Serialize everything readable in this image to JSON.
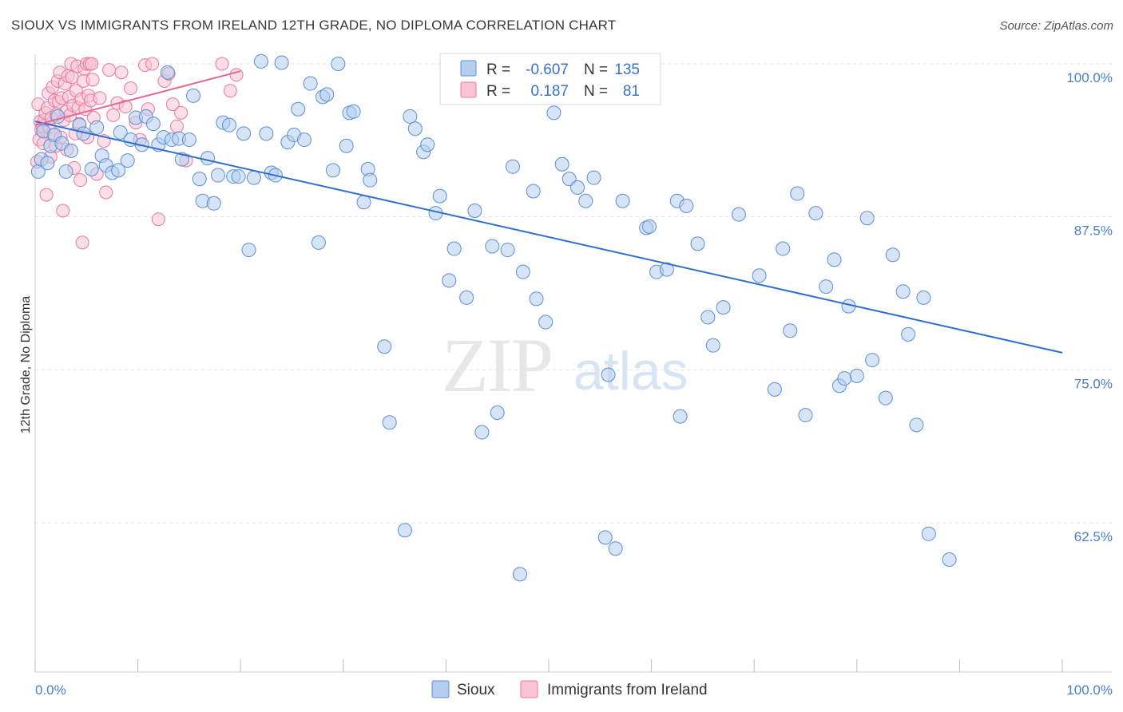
{
  "header": {
    "title": "SIOUX VS IMMIGRANTS FROM IRELAND 12TH GRADE, NO DIPLOMA CORRELATION CHART",
    "source": "Source: ZipAtlas.com"
  },
  "watermark": {
    "zip": "ZIP",
    "atlas": "atlas"
  },
  "colors": {
    "sioux_fill": "#b5cdee",
    "sioux_stroke": "#5b8fd6",
    "sioux_line": "#2e6fcd",
    "ireland_fill": "#f8c3d4",
    "ireland_stroke": "#e8799d",
    "ireland_line": "#e46891",
    "accent_text": "#3a74c9"
  },
  "legend": {
    "r_label": "R =",
    "n_label": "N =",
    "rows": [
      {
        "r": "-0.607",
        "n": "135"
      },
      {
        "r": "0.187",
        "n": "81"
      }
    ]
  },
  "chart_data": {
    "type": "scatter",
    "title": "SIOUX VS IMMIGRANTS FROM IRELAND 12TH GRADE, NO DIPLOMA CORRELATION CHART",
    "xlabel": "",
    "ylabel": "12th Grade, No Diploma",
    "xlim": [
      0,
      100
    ],
    "ylim": [
      50,
      102
    ],
    "x_tick_labels": [
      "0.0%",
      "100.0%"
    ],
    "y_tick_labels": [
      "100.0%",
      "87.5%",
      "75.0%",
      "62.5%"
    ],
    "y_ticks": [
      100,
      87.5,
      75,
      62.5
    ],
    "grid": true,
    "legend_position": "bottom",
    "series": [
      {
        "name": "Sioux",
        "r": -0.607,
        "n": 135,
        "trend": [
          [
            0,
            95.3
          ],
          [
            100,
            76.4
          ]
        ],
        "points": [
          [
            0.3,
            91.2
          ],
          [
            0.6,
            92.2
          ],
          [
            0.8,
            94.5
          ],
          [
            1.2,
            91.9
          ],
          [
            1.5,
            93.3
          ],
          [
            1.9,
            94.2
          ],
          [
            2.2,
            95.7
          ],
          [
            2.6,
            93.5
          ],
          [
            3.0,
            91.2
          ],
          [
            3.5,
            92.9
          ],
          [
            4.3,
            95.0
          ],
          [
            4.7,
            94.3
          ],
          [
            5.5,
            91.4
          ],
          [
            6.0,
            94.8
          ],
          [
            6.5,
            92.5
          ],
          [
            6.9,
            91.7
          ],
          [
            7.5,
            91.1
          ],
          [
            8.1,
            91.3
          ],
          [
            8.3,
            94.4
          ],
          [
            9.0,
            92.1
          ],
          [
            9.3,
            93.8
          ],
          [
            9.8,
            95.6
          ],
          [
            10.4,
            93.4
          ],
          [
            10.8,
            95.7
          ],
          [
            11.5,
            95.1
          ],
          [
            12.0,
            93.4
          ],
          [
            12.5,
            94.0
          ],
          [
            12.9,
            99.3
          ],
          [
            13.3,
            93.8
          ],
          [
            14.0,
            93.9
          ],
          [
            14.3,
            92.2
          ],
          [
            15.0,
            93.8
          ],
          [
            15.4,
            97.4
          ],
          [
            16.0,
            90.6
          ],
          [
            16.3,
            88.8
          ],
          [
            16.8,
            92.3
          ],
          [
            17.4,
            88.6
          ],
          [
            17.8,
            90.9
          ],
          [
            18.3,
            95.2
          ],
          [
            18.9,
            95.0
          ],
          [
            19.3,
            90.8
          ],
          [
            19.8,
            90.8
          ],
          [
            20.3,
            94.3
          ],
          [
            20.8,
            84.8
          ],
          [
            21.3,
            90.7
          ],
          [
            22.0,
            100.2
          ],
          [
            22.5,
            94.3
          ],
          [
            23.0,
            91.1
          ],
          [
            23.4,
            90.9
          ],
          [
            24.0,
            100.1
          ],
          [
            24.6,
            93.6
          ],
          [
            25.2,
            94.2
          ],
          [
            25.6,
            96.3
          ],
          [
            26.2,
            93.8
          ],
          [
            26.8,
            98.4
          ],
          [
            27.6,
            85.4
          ],
          [
            28.0,
            97.3
          ],
          [
            28.4,
            97.5
          ],
          [
            29.0,
            91.3
          ],
          [
            29.5,
            100.0
          ],
          [
            30.3,
            93.3
          ],
          [
            30.6,
            96.0
          ],
          [
            31.0,
            96.1
          ],
          [
            32.0,
            88.7
          ],
          [
            32.4,
            91.4
          ],
          [
            32.6,
            90.5
          ],
          [
            34.0,
            76.9
          ],
          [
            34.5,
            70.7
          ],
          [
            36.0,
            61.9
          ],
          [
            36.5,
            95.7
          ],
          [
            37.0,
            94.7
          ],
          [
            37.8,
            92.8
          ],
          [
            38.2,
            93.4
          ],
          [
            39.0,
            87.8
          ],
          [
            39.4,
            89.2
          ],
          [
            40.3,
            82.3
          ],
          [
            40.8,
            84.9
          ],
          [
            41.0,
            100.1
          ],
          [
            42.0,
            80.9
          ],
          [
            42.8,
            88.0
          ],
          [
            43.5,
            69.9
          ],
          [
            44.5,
            85.1
          ],
          [
            45.0,
            71.5
          ],
          [
            46.0,
            84.8
          ],
          [
            46.5,
            91.6
          ],
          [
            47.2,
            58.3
          ],
          [
            47.5,
            83.0
          ],
          [
            48.5,
            89.6
          ],
          [
            48.8,
            80.8
          ],
          [
            49.7,
            78.9
          ],
          [
            50.5,
            96.0
          ],
          [
            51.3,
            91.8
          ],
          [
            52.0,
            90.6
          ],
          [
            52.8,
            89.9
          ],
          [
            53.6,
            88.8
          ],
          [
            54.4,
            90.7
          ],
          [
            55.5,
            61.3
          ],
          [
            55.8,
            74.6
          ],
          [
            56.5,
            60.4
          ],
          [
            57.2,
            88.8
          ],
          [
            57.5,
            100.0
          ],
          [
            59.5,
            86.6
          ],
          [
            59.8,
            86.7
          ],
          [
            60.5,
            83.0
          ],
          [
            61.5,
            83.2
          ],
          [
            62.5,
            88.8
          ],
          [
            62.8,
            71.2
          ],
          [
            63.4,
            88.4
          ],
          [
            64.5,
            85.3
          ],
          [
            65.5,
            79.3
          ],
          [
            66.0,
            77.0
          ],
          [
            67.0,
            80.1
          ],
          [
            68.5,
            87.7
          ],
          [
            70.5,
            82.7
          ],
          [
            72.0,
            73.4
          ],
          [
            72.8,
            84.9
          ],
          [
            73.5,
            78.2
          ],
          [
            74.2,
            89.4
          ],
          [
            75.0,
            71.3
          ],
          [
            76.0,
            87.8
          ],
          [
            77.0,
            81.8
          ],
          [
            77.8,
            84.0
          ],
          [
            78.3,
            73.7
          ],
          [
            78.8,
            74.3
          ],
          [
            79.2,
            80.2
          ],
          [
            80.0,
            74.5
          ],
          [
            81.0,
            87.4
          ],
          [
            81.5,
            75.8
          ],
          [
            82.8,
            72.7
          ],
          [
            83.5,
            84.4
          ],
          [
            84.5,
            81.4
          ],
          [
            85.0,
            77.9
          ],
          [
            85.8,
            70.5
          ],
          [
            86.5,
            80.9
          ],
          [
            87.0,
            61.6
          ],
          [
            89.0,
            59.5
          ]
        ]
      },
      {
        "name": "Immigrants from Ireland",
        "r": 0.187,
        "n": 81,
        "trend": [
          [
            0,
            95.0
          ],
          [
            20,
            99.4
          ]
        ],
        "points": [
          [
            0.2,
            92.0
          ],
          [
            0.3,
            96.7
          ],
          [
            0.4,
            93.8
          ],
          [
            0.5,
            95.3
          ],
          [
            0.6,
            94.6
          ],
          [
            0.7,
            94.9
          ],
          [
            0.8,
            93.5
          ],
          [
            0.9,
            95.4
          ],
          [
            1.0,
            96.0
          ],
          [
            1.1,
            89.3
          ],
          [
            1.2,
            96.4
          ],
          [
            1.3,
            97.6
          ],
          [
            1.4,
            94.8
          ],
          [
            1.5,
            92.4
          ],
          [
            1.6,
            95.6
          ],
          [
            1.7,
            98.1
          ],
          [
            1.8,
            94.2
          ],
          [
            1.9,
            97.0
          ],
          [
            2.0,
            93.3
          ],
          [
            2.1,
            95.9
          ],
          [
            2.2,
            98.6
          ],
          [
            2.3,
            96.9
          ],
          [
            2.4,
            99.3
          ],
          [
            2.5,
            94.0
          ],
          [
            2.6,
            97.2
          ],
          [
            2.7,
            88.0
          ],
          [
            2.8,
            95.4
          ],
          [
            2.9,
            98.4
          ],
          [
            3.0,
            96.1
          ],
          [
            3.1,
            93.0
          ],
          [
            3.2,
            99.0
          ],
          [
            3.3,
            97.3
          ],
          [
            3.4,
            95.8
          ],
          [
            3.5,
            100.0
          ],
          [
            3.6,
            98.9
          ],
          [
            3.7,
            96.6
          ],
          [
            3.8,
            91.5
          ],
          [
            3.9,
            94.3
          ],
          [
            4.0,
            97.8
          ],
          [
            4.1,
            99.8
          ],
          [
            4.2,
            96.4
          ],
          [
            4.3,
            95.1
          ],
          [
            4.4,
            90.5
          ],
          [
            4.5,
            97.1
          ],
          [
            4.6,
            85.4
          ],
          [
            4.7,
            98.6
          ],
          [
            4.8,
            99.6
          ],
          [
            4.9,
            96.3
          ],
          [
            5.0,
            100.0
          ],
          [
            5.1,
            94.0
          ],
          [
            5.2,
            97.4
          ],
          [
            5.3,
            100.0
          ],
          [
            5.4,
            97.0
          ],
          [
            5.5,
            100.0
          ],
          [
            5.6,
            98.7
          ],
          [
            5.7,
            95.6
          ],
          [
            6.0,
            91.0
          ],
          [
            6.3,
            97.2
          ],
          [
            6.7,
            93.7
          ],
          [
            6.9,
            89.5
          ],
          [
            7.2,
            99.5
          ],
          [
            7.6,
            95.8
          ],
          [
            8.0,
            96.8
          ],
          [
            8.4,
            99.3
          ],
          [
            8.8,
            96.5
          ],
          [
            9.3,
            98.0
          ],
          [
            9.8,
            95.2
          ],
          [
            10.2,
            93.8
          ],
          [
            10.7,
            99.9
          ],
          [
            11.0,
            96.3
          ],
          [
            11.4,
            100.0
          ],
          [
            12.0,
            87.3
          ],
          [
            12.6,
            98.6
          ],
          [
            13.0,
            99.2
          ],
          [
            13.4,
            96.7
          ],
          [
            13.8,
            94.9
          ],
          [
            14.2,
            96.0
          ],
          [
            14.7,
            92.1
          ],
          [
            18.2,
            100.0
          ],
          [
            19.0,
            97.8
          ],
          [
            19.6,
            99.1
          ]
        ]
      }
    ]
  }
}
